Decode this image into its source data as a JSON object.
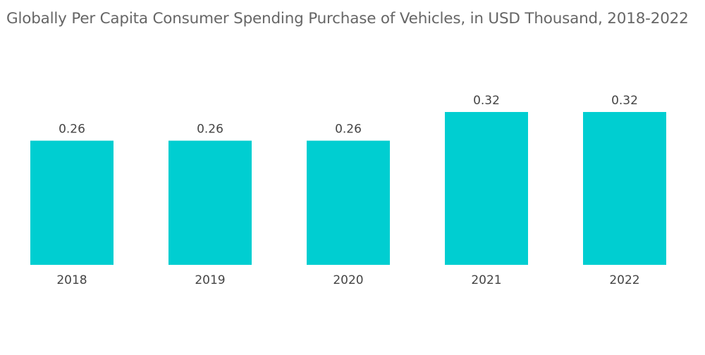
{
  "chart_data": {
    "type": "bar",
    "title": "Globally Per Capita Consumer Spending Purchase of Vehicles, in USD Thousand, 2018-2022",
    "categories": [
      "2018",
      "2019",
      "2020",
      "2021",
      "2022"
    ],
    "values": [
      0.26,
      0.26,
      0.26,
      0.32,
      0.32
    ],
    "value_labels": [
      "0.26",
      "0.26",
      "0.26",
      "0.32",
      "0.32"
    ],
    "xlabel": "",
    "ylabel": "",
    "ylim": [
      0,
      0.32
    ],
    "grid": false,
    "legend": "none",
    "bar_color": "#00CED1"
  }
}
